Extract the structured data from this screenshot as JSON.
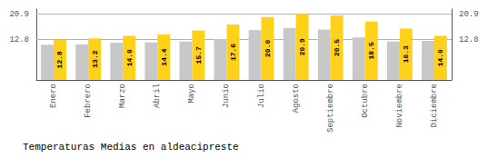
{
  "chart_data": {
    "type": "bar",
    "title": "Temperaturas Medias en aldeacipreste",
    "categories": [
      "Enero",
      "Febrero",
      "Marzo",
      "Abril",
      "Mayo",
      "Junio",
      "Julio",
      "Agosto",
      "Septiembre",
      "Octubre",
      "Noviembre",
      "Diciembre"
    ],
    "series": [
      {
        "color": "#C8C8C8",
        "values": [
          11.2,
          11.3,
          11.8,
          11.9,
          12.2,
          13.0,
          15.8,
          16.5,
          16.0,
          13.5,
          12.2,
          12.4
        ]
      },
      {
        "color": "#FFD118",
        "values": [
          12.8,
          13.2,
          14.0,
          14.4,
          15.7,
          17.6,
          20.0,
          20.9,
          20.5,
          18.5,
          16.3,
          14.0
        ],
        "data_labels": true,
        "value_labels": [
          "12.8",
          "13.2",
          "14.0",
          "14.4",
          "15.7",
          "17.6",
          "20.0",
          "20.9",
          "20.5",
          "18.5",
          "16.3",
          "14.0"
        ]
      }
    ],
    "ylim": [
      0,
      22.5
    ],
    "yticks": [
      12.8,
      20.9
    ],
    "y2lim": [
      0,
      22.5
    ],
    "y2ticks": [
      12.8,
      20.9
    ],
    "grid": true
  }
}
